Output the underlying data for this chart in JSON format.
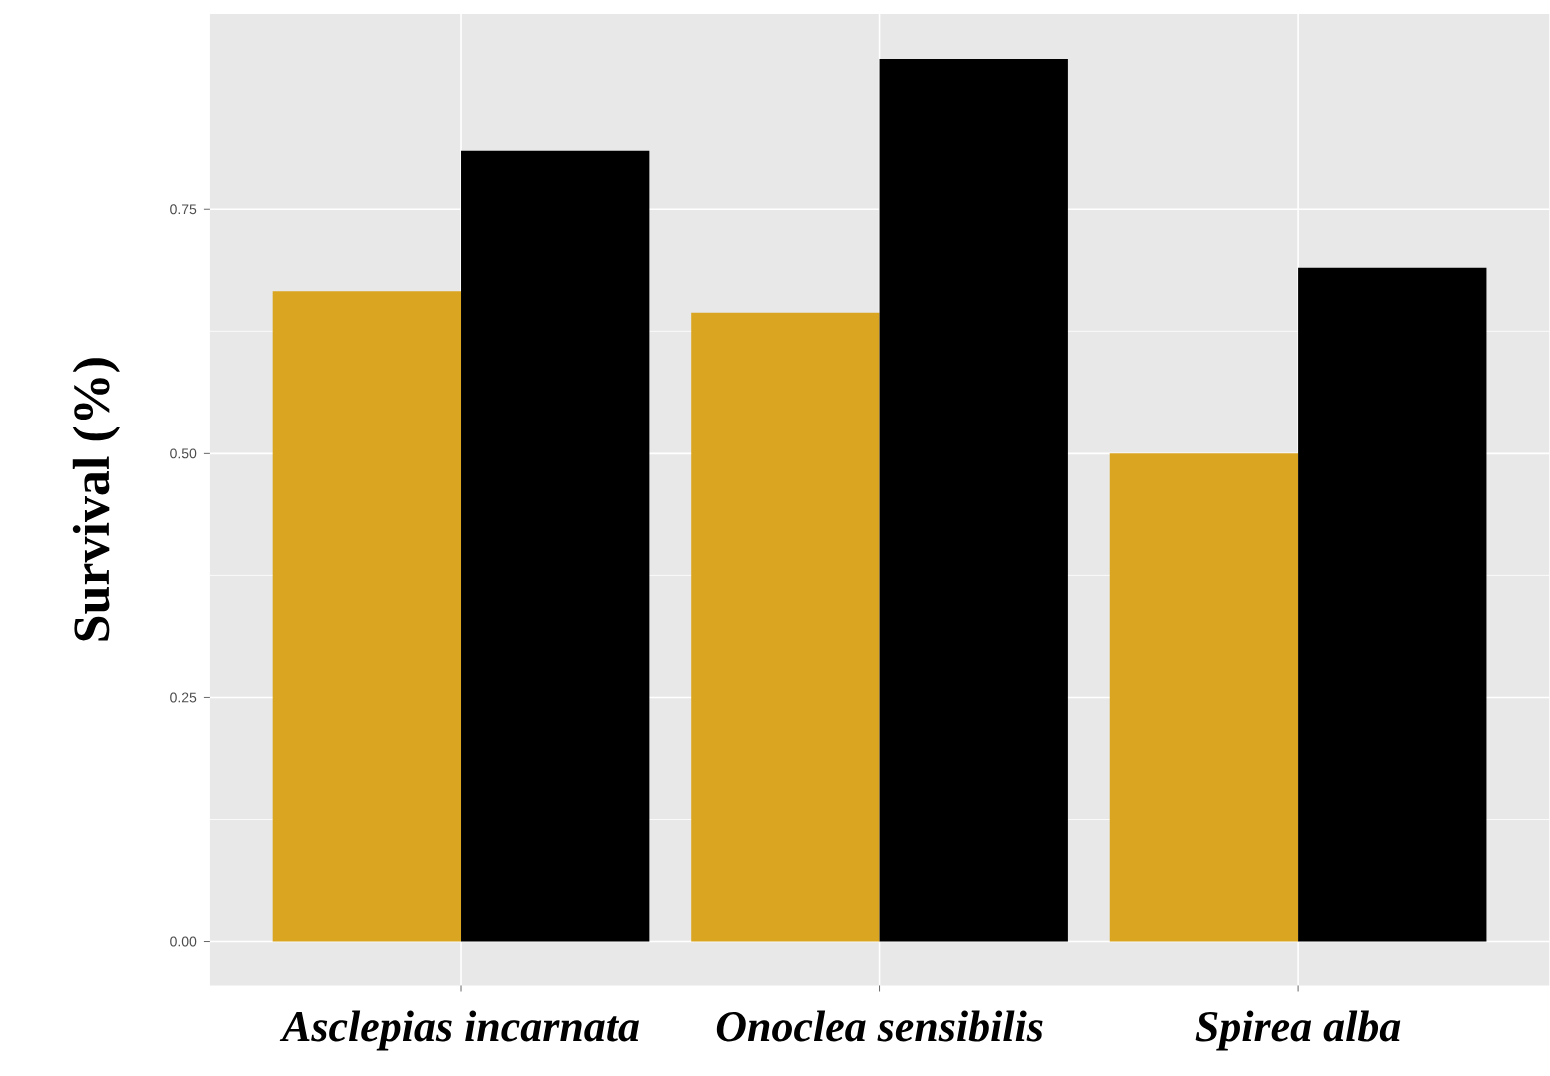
{
  "chart_data": {
    "type": "bar",
    "ylabel": "Survival (%)",
    "categories": [
      "Asclepias incarnata",
      "Onoclea sensibilis",
      "Spirea alba"
    ],
    "series": [
      {
        "color": "#daa520",
        "values": [
          0.666,
          0.644,
          0.5
        ]
      },
      {
        "color": "#000000",
        "values": [
          0.81,
          0.904,
          0.69
        ]
      }
    ],
    "ylim": [
      -0.045,
      0.95
    ],
    "yticks": [
      {
        "value": 0,
        "label": "0.00"
      },
      {
        "value": 0.25,
        "label": "0.25"
      },
      {
        "value": 0.5,
        "label": "0.50"
      },
      {
        "value": 0.75,
        "label": "0.75"
      }
    ],
    "grid": true
  }
}
